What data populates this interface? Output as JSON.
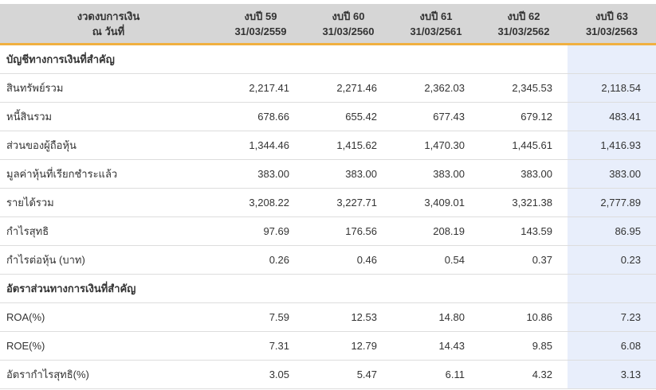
{
  "header": {
    "label_line1": "งวดงบการเงิน",
    "label_line2": "ณ วันที่",
    "periods": [
      {
        "year": "งบปี 59",
        "date": "31/03/2559"
      },
      {
        "year": "งบปี 60",
        "date": "31/03/2560"
      },
      {
        "year": "งบปี 61",
        "date": "31/03/2561"
      },
      {
        "year": "งบปี 62",
        "date": "31/03/2562"
      },
      {
        "year": "งบปี 63",
        "date": "31/03/2563"
      }
    ]
  },
  "highlight_color": "#e8eefb",
  "accent_color": "#f0b040",
  "rows": [
    {
      "type": "section",
      "label": "บัญชีทางการเงินที่สำคัญ"
    },
    {
      "type": "data",
      "label": "สินทรัพย์รวม",
      "values": [
        "2,217.41",
        "2,271.46",
        "2,362.03",
        "2,345.53",
        "2,118.54"
      ]
    },
    {
      "type": "data",
      "label": "หนี้สินรวม",
      "values": [
        "678.66",
        "655.42",
        "677.43",
        "679.12",
        "483.41"
      ]
    },
    {
      "type": "data",
      "label": "ส่วนของผู้ถือหุ้น",
      "values": [
        "1,344.46",
        "1,415.62",
        "1,470.30",
        "1,445.61",
        "1,416.93"
      ]
    },
    {
      "type": "data",
      "label": "มูลค่าหุ้นที่เรียกชำระแล้ว",
      "values": [
        "383.00",
        "383.00",
        "383.00",
        "383.00",
        "383.00"
      ]
    },
    {
      "type": "data",
      "label": "รายได้รวม",
      "values": [
        "3,208.22",
        "3,227.71",
        "3,409.01",
        "3,321.38",
        "2,777.89"
      ]
    },
    {
      "type": "data",
      "label": "กำไรสุทธิ",
      "values": [
        "97.69",
        "176.56",
        "208.19",
        "143.59",
        "86.95"
      ]
    },
    {
      "type": "data",
      "label": "กำไรต่อหุ้น (บาท)",
      "values": [
        "0.26",
        "0.46",
        "0.54",
        "0.37",
        "0.23"
      ]
    },
    {
      "type": "section",
      "label": "อัตราส่วนทางการเงินที่สำคัญ"
    },
    {
      "type": "data",
      "label": "ROA(%)",
      "values": [
        "7.59",
        "12.53",
        "14.80",
        "10.86",
        "7.23"
      ]
    },
    {
      "type": "data",
      "label": "ROE(%)",
      "values": [
        "7.31",
        "12.79",
        "14.43",
        "9.85",
        "6.08"
      ]
    },
    {
      "type": "data",
      "label": "อัตรากำไรสุทธิ(%)",
      "values": [
        "3.05",
        "5.47",
        "6.11",
        "4.32",
        "3.13"
      ]
    }
  ]
}
